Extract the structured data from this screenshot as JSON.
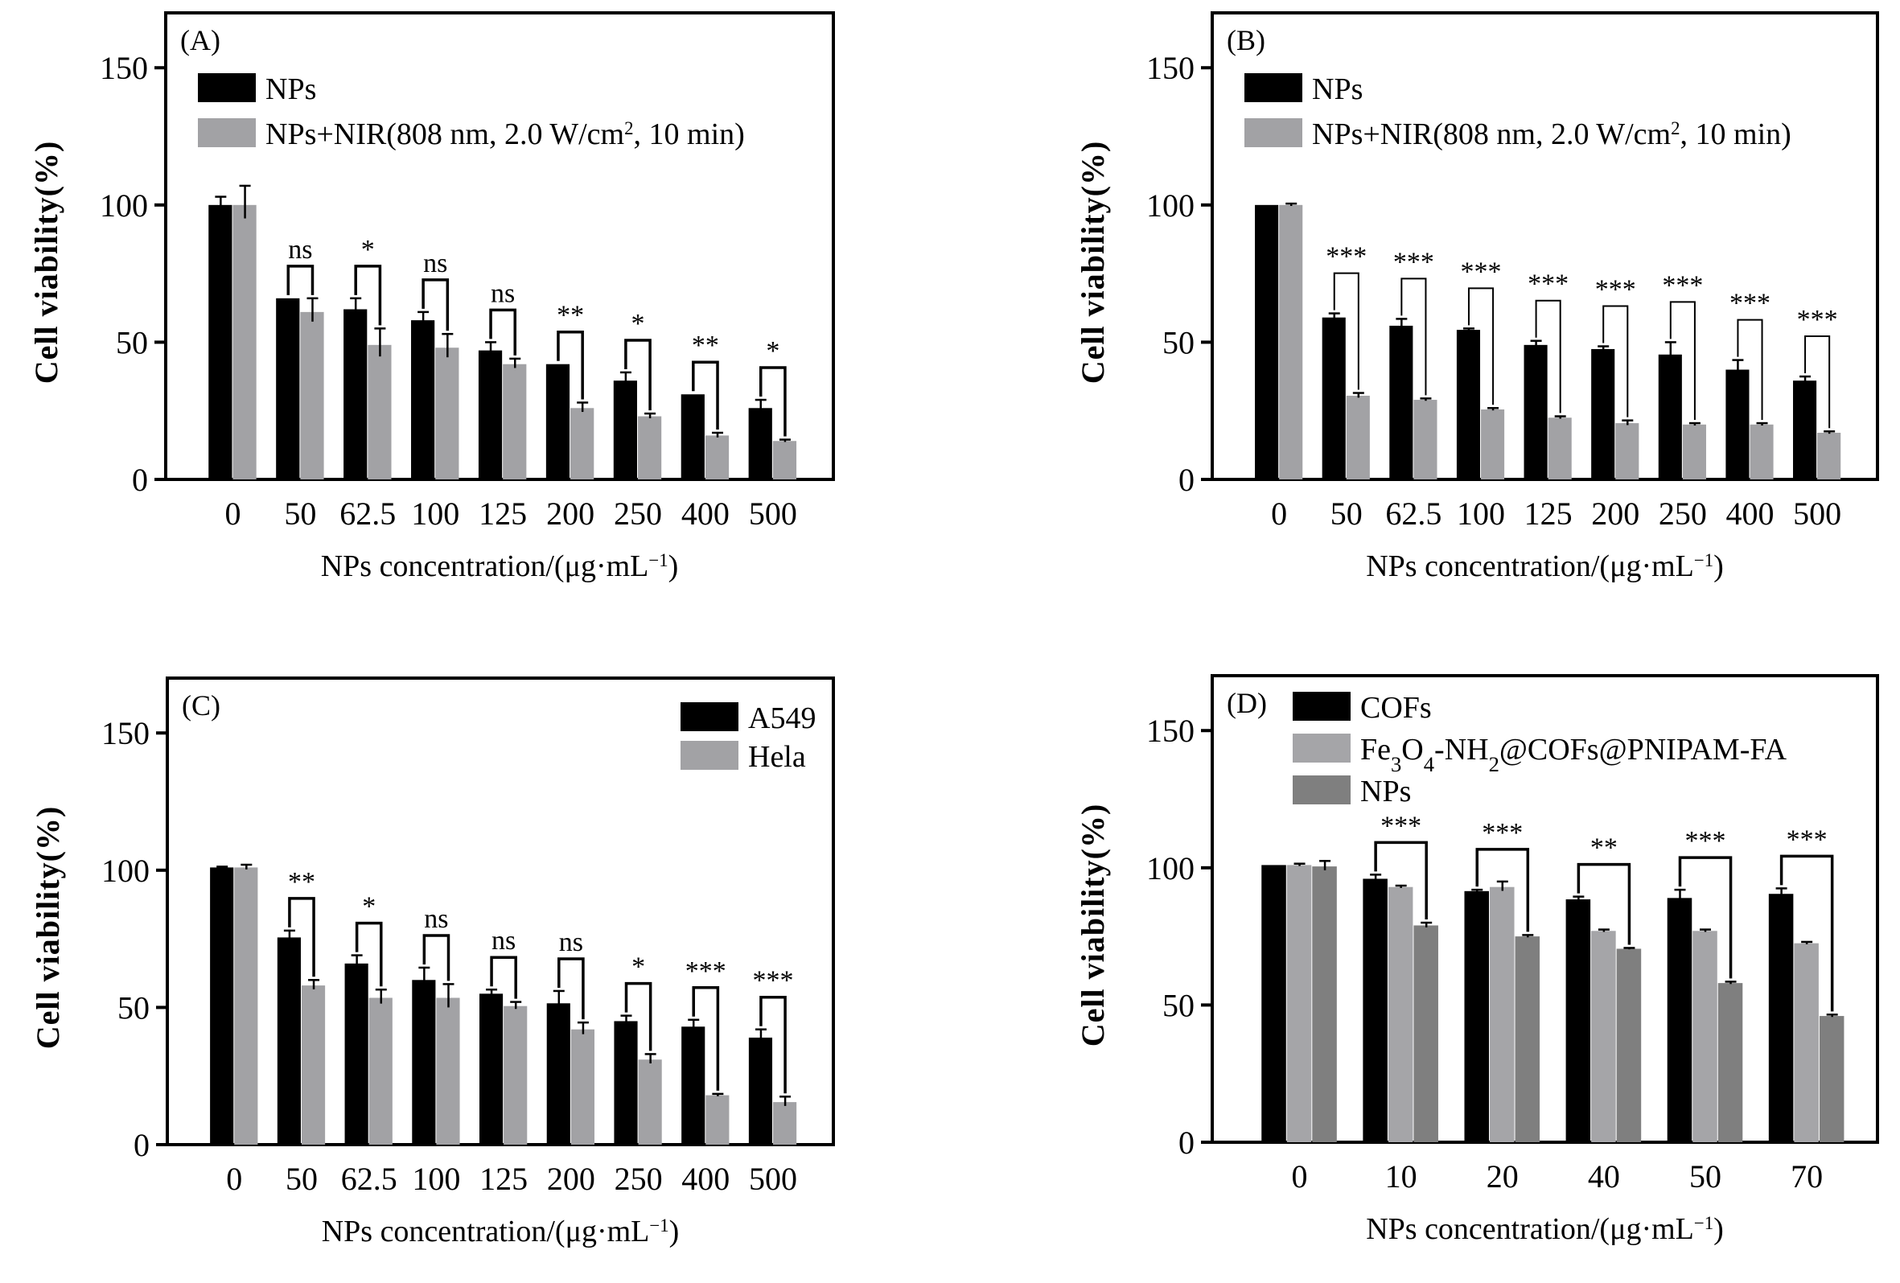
{
  "chart_data": [
    {
      "type": "bar",
      "panel": "(A)",
      "title": "",
      "xlabel": "NPs concentration/(μg·mL⁻¹)",
      "ylabel": "Cell viability(%)",
      "ylim": [
        0,
        170
      ],
      "yticks": [
        0,
        50,
        100,
        150
      ],
      "categories": [
        "0",
        "50",
        "62.5",
        "100",
        "125",
        "200",
        "250",
        "400",
        "500"
      ],
      "series": [
        {
          "name": "NPs",
          "color": "#000000",
          "values": [
            100,
            66,
            62,
            58,
            47,
            42,
            36,
            31,
            26
          ],
          "errors": [
            3,
            0,
            4,
            3,
            3,
            0,
            3,
            0,
            3
          ]
        },
        {
          "name": "NPs+NIR(808 nm, 2.0 W/cm², 10 min)",
          "color": "#a2a2a5",
          "values": [
            100,
            61,
            49,
            48,
            42,
            26,
            23,
            16,
            14
          ],
          "errors": [
            7,
            5,
            6,
            5,
            2,
            2,
            1,
            1,
            0.5
          ]
        }
      ],
      "significance": [
        "",
        "ns",
        "*",
        "ns",
        "ns",
        "**",
        "*",
        "**",
        "*"
      ],
      "legend": "top-left",
      "grid": false
    },
    {
      "type": "bar",
      "panel": "(B)",
      "title": "",
      "xlabel": "NPs concentration/(μg·mL⁻¹)",
      "ylabel": "Cell viability(%)",
      "ylim": [
        0,
        170
      ],
      "yticks": [
        0,
        50,
        100,
        150
      ],
      "categories": [
        "0",
        "50",
        "62.5",
        "100",
        "125",
        "200",
        "250",
        "400",
        "500"
      ],
      "series": [
        {
          "name": "NPs",
          "color": "#000000",
          "values": [
            100,
            59,
            56,
            54.5,
            49,
            47.5,
            45.5,
            40,
            36
          ],
          "errors": [
            0,
            1.5,
            2.5,
            0.5,
            1.5,
            1,
            4.5,
            3.5,
            1.5
          ]
        },
        {
          "name": "NPs+NIR(808 nm, 2.0 W/cm², 10 min)",
          "color": "#a2a2a5",
          "values": [
            100,
            30.5,
            29,
            25.5,
            22.5,
            20.5,
            20,
            20,
            17
          ],
          "errors": [
            0.5,
            1,
            0.5,
            0.5,
            0.5,
            1,
            0.5,
            0.5,
            0.5
          ]
        }
      ],
      "significance": [
        "",
        "***",
        "***",
        "***",
        "***",
        "***",
        "***",
        "***",
        "***"
      ],
      "legend": "top-left",
      "grid": false
    },
    {
      "type": "bar",
      "panel": "(C)",
      "title": "",
      "xlabel": "NPs concentration/(μg·mL⁻¹)",
      "ylabel": "Cell viability(%)",
      "ylim": [
        0,
        170
      ],
      "yticks": [
        0,
        50,
        100,
        150
      ],
      "categories": [
        "0",
        "50",
        "62.5",
        "100",
        "125",
        "200",
        "250",
        "400",
        "500"
      ],
      "series": [
        {
          "name": "A549",
          "color": "#000000",
          "values": [
            101,
            75.5,
            66,
            60,
            55,
            51.5,
            45,
            43,
            39
          ],
          "errors": [
            0.3,
            2.5,
            3,
            4.5,
            1.5,
            4.5,
            2,
            2.5,
            3
          ]
        },
        {
          "name": "Hela",
          "color": "#a2a2a5",
          "values": [
            101,
            58,
            53.5,
            53.5,
            50.5,
            42,
            31,
            18,
            15.5
          ],
          "errors": [
            1,
            2,
            3,
            5,
            1.5,
            2.5,
            2,
            0.5,
            2
          ]
        }
      ],
      "significance": [
        "",
        "**",
        "*",
        "ns",
        "ns",
        "ns",
        "*",
        "***",
        "***"
      ],
      "legend": "top-right",
      "grid": false
    },
    {
      "type": "bar",
      "panel": "(D)",
      "title": "",
      "xlabel": "NPs concentration/(μg·mL⁻¹)",
      "ylabel": "Cell viability(%)",
      "ylim": [
        0,
        170
      ],
      "yticks": [
        0,
        50,
        100,
        150
      ],
      "categories": [
        "0",
        "10",
        "20",
        "40",
        "50",
        "70"
      ],
      "series": [
        {
          "name": "COFs",
          "color": "#000000",
          "values": [
            101,
            96,
            91.5,
            88.5,
            89,
            90.5
          ],
          "errors": [
            0,
            1.5,
            0.5,
            1,
            3,
            2
          ]
        },
        {
          "name": "Fe3O4-NH2@COFs@PNIPAM-FA",
          "color": "#a5a5a8",
          "values": [
            101,
            93,
            93,
            77,
            77,
            72.5
          ],
          "errors": [
            0.5,
            0.5,
            2,
            0.5,
            0.5,
            0.5
          ]
        },
        {
          "name": "NPs",
          "color": "#7f7f7f",
          "values": [
            100.5,
            79,
            75,
            70.5,
            58,
            46
          ],
          "errors": [
            2,
            1,
            0.5,
            0.3,
            0.5,
            0.5
          ]
        }
      ],
      "significance": [
        "",
        "***",
        "***",
        "**",
        "***",
        "***"
      ],
      "legend": "top-left",
      "grid": false
    }
  ],
  "legend_rich": {
    "fe3o4_parts": [
      {
        "t": "Fe",
        "sub": false
      },
      {
        "t": "3",
        "sub": true
      },
      {
        "t": "O",
        "sub": false
      },
      {
        "t": "4",
        "sub": true
      },
      {
        "t": "-NH",
        "sub": false
      },
      {
        "t": "2",
        "sub": true
      },
      {
        "t": "@COFs@PNIPAM-FA",
        "sub": false
      }
    ],
    "nir_parts": [
      {
        "t": "NPs+NIR(808 nm, 2.0 W/cm",
        "sup": false
      },
      {
        "t": "2",
        "sup": true
      },
      {
        "t": ", 10 min)",
        "sup": false
      }
    ],
    "xlabel_parts": [
      {
        "t": "NPs concentration/(μg·mL",
        "sup": false
      },
      {
        "t": "−1",
        "sup": true
      },
      {
        "t": ")",
        "sup": false
      }
    ]
  }
}
